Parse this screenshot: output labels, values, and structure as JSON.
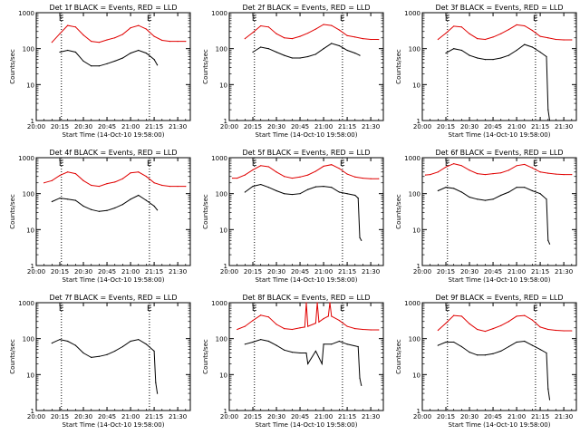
{
  "chart_data": [
    {
      "type": "line",
      "title": "Det 1f BLACK = Events, RED = LLD",
      "xlabel": "Start Time (14-Oct-10 19:58:00)",
      "ylabel": "Counts/sec",
      "x_ticks": [
        "20:00",
        "20:15",
        "20:30",
        "20:45",
        "21:00",
        "21:15",
        "21:30"
      ],
      "y_ticks": [
        "1",
        "10",
        "100",
        "1000"
      ],
      "yscale": "log",
      "xlim": [
        "20:00",
        "21:38"
      ],
      "ylim": [
        1,
        1000
      ],
      "markers": [
        {
          "label": "E",
          "x": "20:16"
        },
        {
          "label": "E",
          "x": "21:12"
        }
      ],
      "series": [
        {
          "color": "#e00000",
          "x": [
            "20:10",
            "20:15",
            "20:20",
            "20:25",
            "20:30",
            "20:35",
            "20:40",
            "20:45",
            "20:50",
            "20:55",
            "21:00",
            "21:05",
            "21:10",
            "21:15",
            "21:20",
            "21:25",
            "21:30",
            "21:35"
          ],
          "values": [
            150,
            260,
            440,
            400,
            240,
            160,
            150,
            175,
            200,
            250,
            380,
            440,
            350,
            220,
            170,
            160,
            160,
            160
          ]
        },
        {
          "color": "#000000",
          "x": [
            "20:15",
            "20:20",
            "20:25",
            "20:30",
            "20:35",
            "20:40",
            "20:45",
            "20:50",
            "20:55",
            "21:00",
            "21:05",
            "21:10",
            "21:15",
            "21:17"
          ],
          "values": [
            80,
            90,
            80,
            45,
            33,
            33,
            38,
            45,
            55,
            75,
            90,
            75,
            50,
            35
          ]
        }
      ]
    },
    {
      "type": "line",
      "title": "Det 2f BLACK = Events, RED = LLD",
      "xlabel": "Start Time (14-Oct-10 19:58:00)",
      "ylabel": "Counts/sec",
      "x_ticks": [
        "20:00",
        "20:15",
        "20:30",
        "20:45",
        "21:00",
        "21:15",
        "21:30"
      ],
      "y_ticks": [
        "1",
        "10",
        "100",
        "1000"
      ],
      "yscale": "log",
      "xlim": [
        "20:00",
        "21:38"
      ],
      "ylim": [
        1,
        1000
      ],
      "markers": [
        {
          "label": "E",
          "x": "20:16"
        },
        {
          "label": "E",
          "x": "21:12"
        }
      ],
      "series": [
        {
          "color": "#e00000",
          "x": [
            "20:10",
            "20:15",
            "20:20",
            "20:25",
            "20:30",
            "20:35",
            "20:40",
            "20:45",
            "20:50",
            "20:55",
            "21:00",
            "21:05",
            "21:10",
            "21:15",
            "21:20",
            "21:25",
            "21:30",
            "21:35"
          ],
          "values": [
            190,
            280,
            430,
            400,
            260,
            200,
            190,
            220,
            270,
            350,
            470,
            440,
            330,
            230,
            210,
            190,
            180,
            180
          ]
        },
        {
          "color": "#000000",
          "x": [
            "20:15",
            "20:20",
            "20:25",
            "20:30",
            "20:35",
            "20:40",
            "20:45",
            "20:50",
            "20:55",
            "21:00",
            "21:05",
            "21:10",
            "21:15",
            "21:20",
            "21:23"
          ],
          "values": [
            80,
            110,
            100,
            80,
            65,
            55,
            55,
            60,
            70,
            100,
            140,
            120,
            90,
            75,
            65
          ]
        }
      ]
    },
    {
      "type": "line",
      "title": "Det 3f BLACK = Events, RED = LLD",
      "xlabel": "Start Time (14-Oct-10 19:58:00)",
      "ylabel": "Counts/sec",
      "x_ticks": [
        "20:00",
        "20:15",
        "20:30",
        "20:45",
        "21:00",
        "21:15",
        "21:30"
      ],
      "y_ticks": [
        "1",
        "10",
        "100",
        "1000"
      ],
      "yscale": "log",
      "xlim": [
        "20:00",
        "21:38"
      ],
      "ylim": [
        1,
        1000
      ],
      "markers": [
        {
          "label": "E",
          "x": "20:16"
        },
        {
          "label": "E",
          "x": "21:12"
        }
      ],
      "series": [
        {
          "color": "#e00000",
          "x": [
            "20:10",
            "20:15",
            "20:20",
            "20:25",
            "20:30",
            "20:35",
            "20:40",
            "20:45",
            "20:50",
            "20:55",
            "21:00",
            "21:05",
            "21:10",
            "21:15",
            "21:20",
            "21:25",
            "21:30",
            "21:35"
          ],
          "values": [
            180,
            270,
            420,
            400,
            260,
            190,
            180,
            210,
            260,
            340,
            460,
            430,
            320,
            220,
            200,
            180,
            175,
            175
          ]
        },
        {
          "color": "#000000",
          "x": [
            "20:15",
            "20:20",
            "20:25",
            "20:30",
            "20:35",
            "20:40",
            "20:45",
            "20:50",
            "20:55",
            "21:00",
            "21:05",
            "21:10",
            "21:15",
            "21:19",
            "21:20",
            "21:21"
          ],
          "values": [
            75,
            100,
            90,
            65,
            55,
            50,
            50,
            55,
            65,
            90,
            130,
            110,
            80,
            60,
            2,
            1
          ]
        }
      ]
    },
    {
      "type": "line",
      "title": "Det 4f BLACK = Events, RED = LLD",
      "xlabel": "Start Time (14-Oct-10 19:58:00)",
      "ylabel": "Counts/sec",
      "x_ticks": [
        "20:00",
        "20:15",
        "20:30",
        "20:45",
        "21:00",
        "21:15",
        "21:30"
      ],
      "y_ticks": [
        "1",
        "10",
        "100",
        "1000"
      ],
      "yscale": "log",
      "xlim": [
        "20:00",
        "21:38"
      ],
      "ylim": [
        1,
        1000
      ],
      "markers": [
        {
          "label": "E",
          "x": "20:16"
        },
        {
          "label": "E",
          "x": "21:12"
        }
      ],
      "series": [
        {
          "color": "#e00000",
          "x": [
            "20:05",
            "20:10",
            "20:15",
            "20:20",
            "20:25",
            "20:30",
            "20:35",
            "20:40",
            "20:45",
            "20:50",
            "20:55",
            "21:00",
            "21:05",
            "21:10",
            "21:15",
            "21:20",
            "21:25",
            "21:30",
            "21:35"
          ],
          "values": [
            200,
            230,
            320,
            400,
            360,
            230,
            170,
            160,
            190,
            210,
            260,
            380,
            400,
            300,
            200,
            170,
            160,
            160,
            160
          ]
        },
        {
          "color": "#000000",
          "x": [
            "20:10",
            "20:15",
            "20:20",
            "20:25",
            "20:30",
            "20:35",
            "20:40",
            "20:45",
            "20:50",
            "20:55",
            "21:00",
            "21:05",
            "21:10",
            "21:15",
            "21:17"
          ],
          "values": [
            60,
            75,
            70,
            65,
            45,
            36,
            32,
            34,
            40,
            50,
            70,
            90,
            65,
            45,
            35
          ]
        }
      ]
    },
    {
      "type": "line",
      "title": "Det 5f BLACK = Events, RED = LLD",
      "xlabel": "Start Time (14-Oct-10 19:58:00)",
      "ylabel": "Counts/sec",
      "x_ticks": [
        "20:00",
        "20:15",
        "20:30",
        "20:45",
        "21:00",
        "21:15",
        "21:30"
      ],
      "y_ticks": [
        "1",
        "10",
        "100",
        "1000"
      ],
      "yscale": "log",
      "xlim": [
        "20:00",
        "21:38"
      ],
      "ylim": [
        1,
        1000
      ],
      "markers": [
        {
          "label": "E",
          "x": "20:16"
        },
        {
          "label": "E",
          "x": "21:12"
        }
      ],
      "series": [
        {
          "color": "#e00000",
          "x": [
            "20:02",
            "20:05",
            "20:10",
            "20:15",
            "20:20",
            "20:25",
            "20:30",
            "20:35",
            "20:40",
            "20:45",
            "20:50",
            "20:55",
            "21:00",
            "21:05",
            "21:10",
            "21:15",
            "21:20",
            "21:25",
            "21:30",
            "21:35"
          ],
          "values": [
            270,
            270,
            330,
            460,
            600,
            560,
            400,
            300,
            270,
            290,
            330,
            420,
            580,
            640,
            500,
            350,
            290,
            270,
            260,
            260
          ]
        },
        {
          "color": "#000000",
          "x": [
            "20:10",
            "20:15",
            "20:20",
            "20:25",
            "20:30",
            "20:35",
            "20:40",
            "20:45",
            "20:50",
            "20:55",
            "21:00",
            "21:05",
            "21:10",
            "21:15",
            "21:20",
            "21:22",
            "21:23",
            "21:24"
          ],
          "values": [
            110,
            160,
            180,
            150,
            120,
            100,
            95,
            100,
            130,
            155,
            160,
            150,
            110,
            100,
            90,
            75,
            6,
            5
          ]
        }
      ]
    },
    {
      "type": "line",
      "title": "Det 6f BLACK = Events, RED = LLD",
      "xlabel": "Start Time (14-Oct-10 19:58:00)",
      "ylabel": "Counts/sec",
      "x_ticks": [
        "20:00",
        "20:15",
        "20:30",
        "20:45",
        "21:00",
        "21:15",
        "21:30"
      ],
      "y_ticks": [
        "1",
        "10",
        "100",
        "1000"
      ],
      "yscale": "log",
      "xlim": [
        "20:00",
        "21:38"
      ],
      "ylim": [
        1,
        1000
      ],
      "markers": [
        {
          "label": "E",
          "x": "20:16"
        },
        {
          "label": "E",
          "x": "21:12"
        }
      ],
      "series": [
        {
          "color": "#e00000",
          "x": [
            "20:02",
            "20:05",
            "20:10",
            "20:15",
            "20:20",
            "20:25",
            "20:30",
            "20:35",
            "20:40",
            "20:45",
            "20:50",
            "20:55",
            "21:00",
            "21:05",
            "21:10",
            "21:15",
            "21:20",
            "21:25",
            "21:30",
            "21:35"
          ],
          "values": [
            330,
            340,
            400,
            550,
            680,
            600,
            450,
            360,
            340,
            360,
            380,
            450,
            600,
            650,
            520,
            400,
            370,
            350,
            340,
            340
          ]
        },
        {
          "color": "#000000",
          "x": [
            "20:10",
            "20:15",
            "20:20",
            "20:25",
            "20:30",
            "20:35",
            "20:40",
            "20:45",
            "20:50",
            "20:55",
            "21:00",
            "21:05",
            "21:10",
            "21:15",
            "21:19",
            "21:20",
            "21:21"
          ],
          "values": [
            120,
            150,
            140,
            110,
            80,
            70,
            65,
            70,
            90,
            110,
            150,
            150,
            120,
            100,
            70,
            5,
            4
          ]
        }
      ]
    },
    {
      "type": "line",
      "title": "Det 7f BLACK = Events, RED = LLD",
      "xlabel": "Start Time (14-Oct-10 19:58:00)",
      "ylabel": "Counts/sec",
      "x_ticks": [
        "20:00",
        "20:15",
        "20:30",
        "20:45",
        "21:00",
        "21:15",
        "21:30"
      ],
      "y_ticks": [
        "1",
        "10",
        "100",
        "1000"
      ],
      "yscale": "log",
      "xlim": [
        "20:00",
        "21:38"
      ],
      "ylim": [
        1,
        1000
      ],
      "markers": [
        {
          "label": "E",
          "x": "20:16"
        },
        {
          "label": "E",
          "x": "21:12"
        }
      ],
      "series": [
        {
          "color": "#000000",
          "x": [
            "20:10",
            "20:15",
            "20:20",
            "20:25",
            "20:30",
            "20:35",
            "20:40",
            "20:45",
            "20:50",
            "20:55",
            "21:00",
            "21:05",
            "21:10",
            "21:15",
            "21:16",
            "21:17"
          ],
          "values": [
            75,
            95,
            85,
            65,
            40,
            30,
            32,
            36,
            45,
            60,
            85,
            95,
            70,
            45,
            6,
            3
          ]
        }
      ]
    },
    {
      "type": "line",
      "title": "Det 8f BLACK = Events, RED = LLD",
      "xlabel": "Start Time (14-Oct-10 19:58:00)",
      "ylabel": "Counts/sec",
      "x_ticks": [
        "20:00",
        "20:15",
        "20:30",
        "20:45",
        "21:00",
        "21:15",
        "21:30"
      ],
      "y_ticks": [
        "1",
        "10",
        "100",
        "1000"
      ],
      "yscale": "log",
      "xlim": [
        "20:00",
        "21:38"
      ],
      "ylim": [
        1,
        1000
      ],
      "markers": [
        {
          "label": "E",
          "x": "20:16"
        },
        {
          "label": "E",
          "x": "21:12"
        }
      ],
      "series": [
        {
          "color": "#e00000",
          "x": [
            "20:05",
            "20:10",
            "20:15",
            "20:20",
            "20:25",
            "20:30",
            "20:35",
            "20:40",
            "20:45",
            "20:48",
            "20:49",
            "20:50",
            "20:55",
            "20:56",
            "20:57",
            "21:00",
            "21:03",
            "21:04",
            "21:05",
            "21:10",
            "21:15",
            "21:20",
            "21:25",
            "21:30",
            "21:35"
          ],
          "values": [
            180,
            220,
            320,
            450,
            400,
            250,
            190,
            180,
            200,
            210,
            1000,
            220,
            270,
            1000,
            290,
            360,
            420,
            1000,
            420,
            320,
            220,
            190,
            180,
            175,
            175
          ]
        },
        {
          "color": "#000000",
          "x": [
            "20:10",
            "20:15",
            "20:20",
            "20:25",
            "20:30",
            "20:35",
            "20:40",
            "20:45",
            "20:49",
            "20:50",
            "20:55",
            "20:59",
            "21:00",
            "21:05",
            "21:10",
            "21:15",
            "21:22",
            "21:23",
            "21:24"
          ],
          "values": [
            70,
            80,
            95,
            85,
            65,
            48,
            42,
            40,
            40,
            20,
            45,
            20,
            70,
            70,
            85,
            70,
            60,
            8,
            5
          ]
        }
      ]
    },
    {
      "type": "line",
      "title": "Det 9f BLACK = Events, RED = LLD",
      "xlabel": "Start Time (14-Oct-10 19:58:00)",
      "ylabel": "Counts/sec",
      "x_ticks": [
        "20:00",
        "20:15",
        "20:30",
        "20:45",
        "21:00",
        "21:15",
        "21:30"
      ],
      "y_ticks": [
        "1",
        "10",
        "100",
        "1000"
      ],
      "yscale": "log",
      "xlim": [
        "20:00",
        "21:38"
      ],
      "ylim": [
        1,
        1000
      ],
      "markers": [
        {
          "label": "E",
          "x": "20:16"
        },
        {
          "label": "E",
          "x": "21:12"
        }
      ],
      "series": [
        {
          "color": "#e00000",
          "x": [
            "20:10",
            "20:15",
            "20:20",
            "20:25",
            "20:30",
            "20:35",
            "20:40",
            "20:45",
            "20:50",
            "20:55",
            "21:00",
            "21:05",
            "21:10",
            "21:15",
            "21:20",
            "21:25",
            "21:30",
            "21:35"
          ],
          "values": [
            170,
            270,
            440,
            420,
            260,
            180,
            160,
            190,
            230,
            300,
            420,
            440,
            330,
            210,
            180,
            170,
            165,
            165
          ]
        },
        {
          "color": "#000000",
          "x": [
            "20:10",
            "20:15",
            "20:20",
            "20:25",
            "20:30",
            "20:35",
            "20:40",
            "20:45",
            "20:50",
            "20:55",
            "21:00",
            "21:05",
            "21:10",
            "21:15",
            "21:19",
            "21:20",
            "21:21"
          ],
          "values": [
            65,
            80,
            80,
            60,
            42,
            35,
            35,
            38,
            45,
            60,
            80,
            85,
            65,
            50,
            40,
            4,
            2
          ]
        }
      ]
    }
  ]
}
